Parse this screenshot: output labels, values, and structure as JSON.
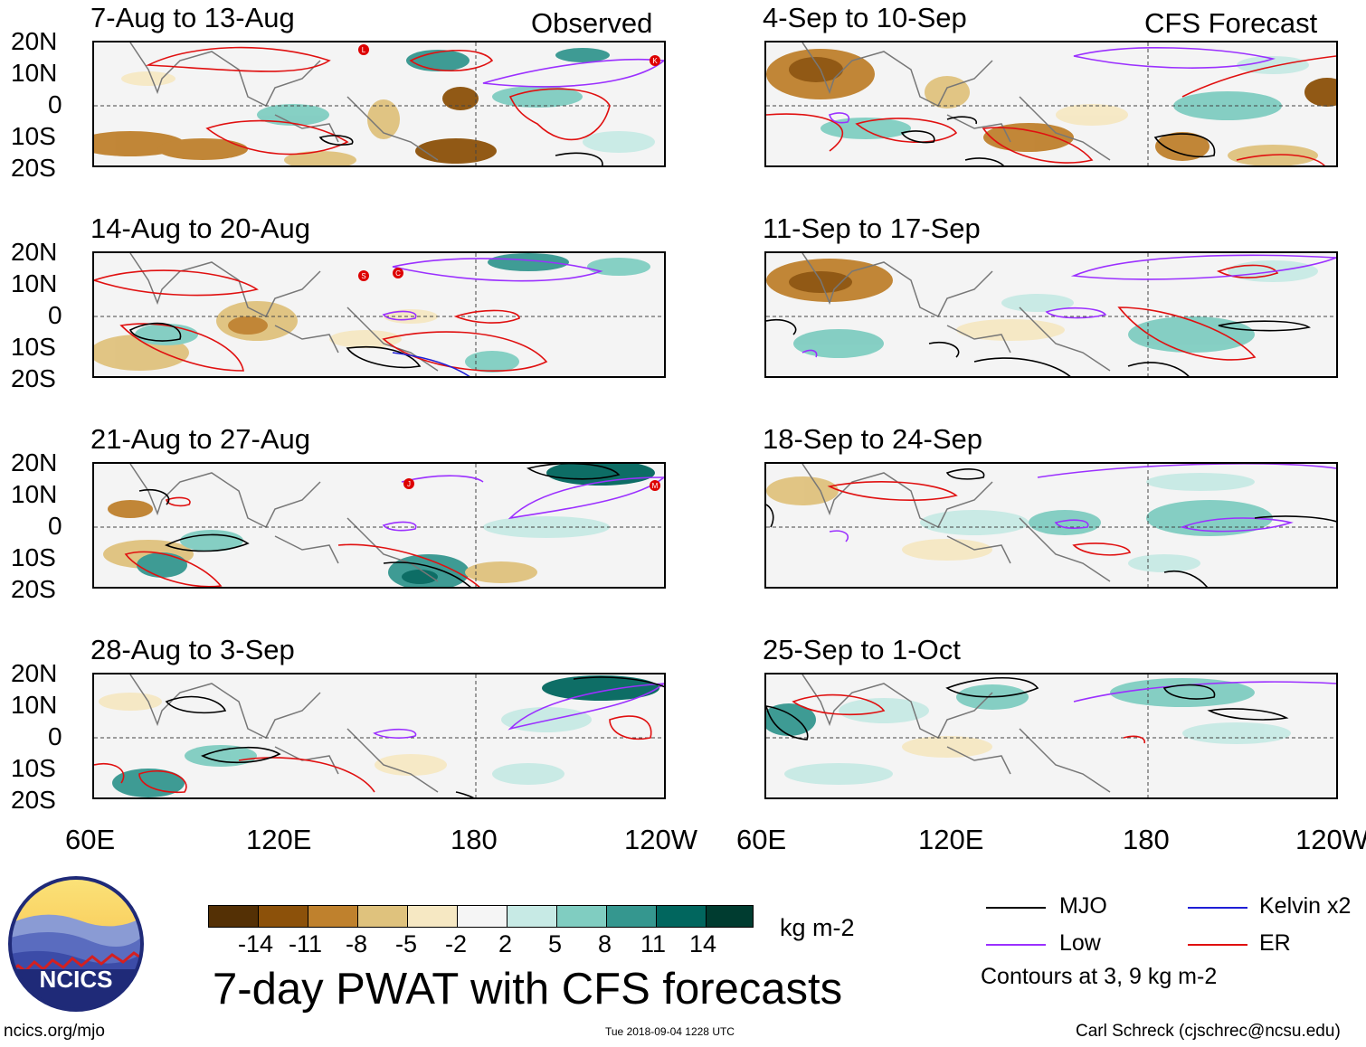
{
  "header": {
    "observed_label": "Observed",
    "forecast_label": "CFS Forecast"
  },
  "panels": {
    "left": [
      {
        "title": "7-Aug to 13-Aug"
      },
      {
        "title": "14-Aug to 20-Aug"
      },
      {
        "title": "21-Aug to 27-Aug"
      },
      {
        "title": "28-Aug to 3-Sep"
      }
    ],
    "right": [
      {
        "title": "4-Sep to 10-Sep"
      },
      {
        "title": "11-Sep to 17-Sep"
      },
      {
        "title": "18-Sep to 24-Sep"
      },
      {
        "title": "25-Sep to 1-Oct"
      }
    ]
  },
  "axes": {
    "lat_labels": [
      "20N",
      "10N",
      "0",
      "10S",
      "20S"
    ],
    "lon_labels": [
      "60E",
      "120E",
      "180",
      "120W"
    ]
  },
  "storm_markers": [
    "L",
    "K",
    "S",
    "C",
    "J",
    "M"
  ],
  "colorbar": {
    "tick_labels": [
      "-14",
      "-11",
      "-8",
      "-5",
      "-2",
      "2",
      "5",
      "8",
      "11",
      "14"
    ],
    "units": "kg m-2",
    "colors": [
      "#543005",
      "#8c510a",
      "#bf812d",
      "#dfc27d",
      "#f6e8c3",
      "#f5f5f5",
      "#c7eae5",
      "#80cdc1",
      "#35978f",
      "#01665e",
      "#003c30"
    ]
  },
  "main_title": "7-day PWAT with CFS forecasts",
  "legend": {
    "items": [
      {
        "label": "MJO",
        "color": "#000000"
      },
      {
        "label": "Kelvin x2",
        "color": "#1f1fd6"
      },
      {
        "label": "Low",
        "color": "#9b30ff"
      },
      {
        "label": "ER",
        "color": "#e01010"
      }
    ],
    "contours_note": "Contours at 3, 9 kg m-2"
  },
  "logo": {
    "text": "NCICS"
  },
  "footer": {
    "site": "ncics.org/mjo",
    "timestamp": "Tue 2018-09-04 1228 UTC",
    "credit": "Carl Schreck (cjschrec@ncsu.edu)"
  }
}
